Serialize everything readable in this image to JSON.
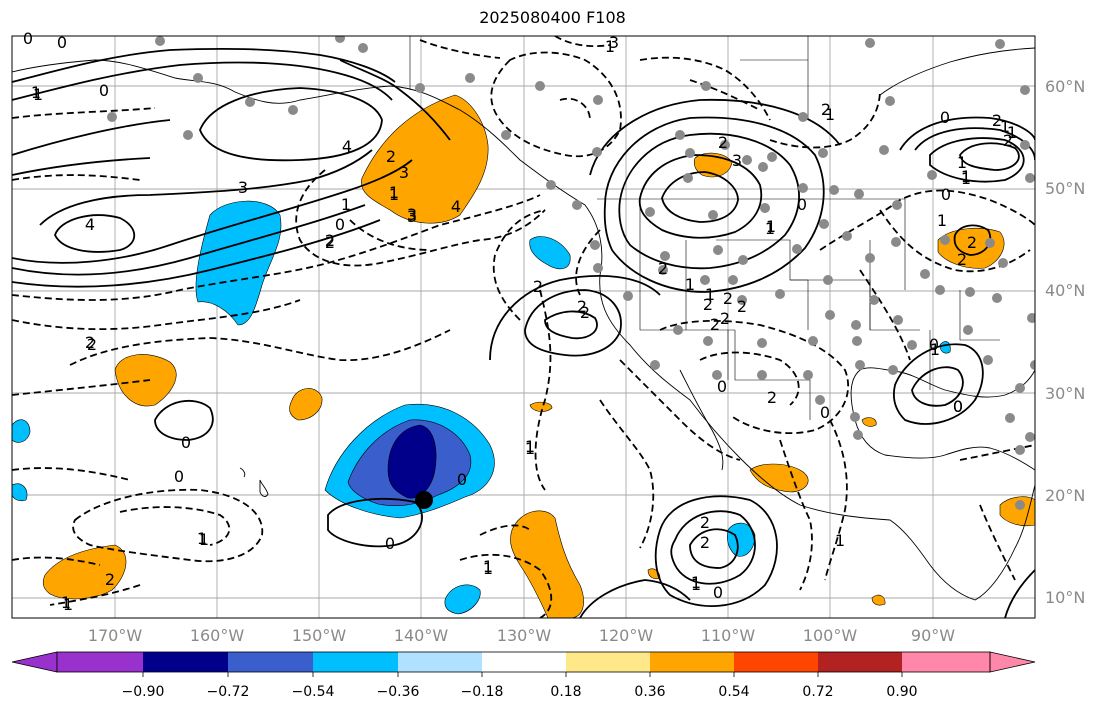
{
  "title": "2025080400 F108",
  "map": {
    "latitude_labels": [
      "60°N",
      "50°N",
      "40°N",
      "30°N",
      "20°N",
      "10°N"
    ],
    "longitude_labels": [
      "170°W",
      "160°W",
      "150°W",
      "140°W",
      "130°W",
      "120°W",
      "110°W",
      "100°W",
      "90°W"
    ],
    "contour_labels": {
      "solid": [
        "4",
        "3",
        "4",
        "4",
        "3",
        "2",
        "1",
        "2",
        "0",
        "2",
        "0",
        "1",
        "0",
        "2",
        "2",
        "3",
        "1",
        "2",
        "0",
        "2",
        "1",
        "0",
        "0",
        "2",
        "1",
        "1",
        "3",
        "2",
        "1",
        "0"
      ],
      "dashed": [
        "0",
        "1",
        "0",
        "0",
        "1",
        "2",
        "2",
        "3",
        "1",
        "2",
        "2",
        "2",
        "1",
        "1",
        "0",
        "0",
        "1",
        "2",
        "1",
        "0",
        "0",
        "1",
        "2",
        "2",
        "0",
        "1",
        "2",
        "1",
        "2",
        "2",
        "1",
        "2",
        "1",
        "1",
        "1",
        "2",
        "1",
        "1",
        "0",
        "1",
        "0",
        "2",
        "1",
        "1",
        "3",
        "2",
        "1",
        "1",
        "1"
      ]
    }
  },
  "colorbar": {
    "ticks": [
      "−0.90",
      "−0.72",
      "−0.54",
      "−0.36",
      "−0.18",
      "0.18",
      "0.36",
      "0.54",
      "0.72",
      "0.90"
    ],
    "colors": [
      "#9932cc",
      "#00008b",
      "#3a5fcd",
      "#00bfff",
      "#b0e2ff",
      "#ffffff",
      "#ffe88a",
      "#ffa500",
      "#ff4500",
      "#b22222",
      "#ff88aa"
    ]
  },
  "colors": {
    "positive_shade": "#ffa500",
    "negative_light": "#00bfff",
    "negative_mid": "#3a5fcd",
    "negative_dark": "#00008b",
    "station_dot": "#8a8a8a"
  }
}
